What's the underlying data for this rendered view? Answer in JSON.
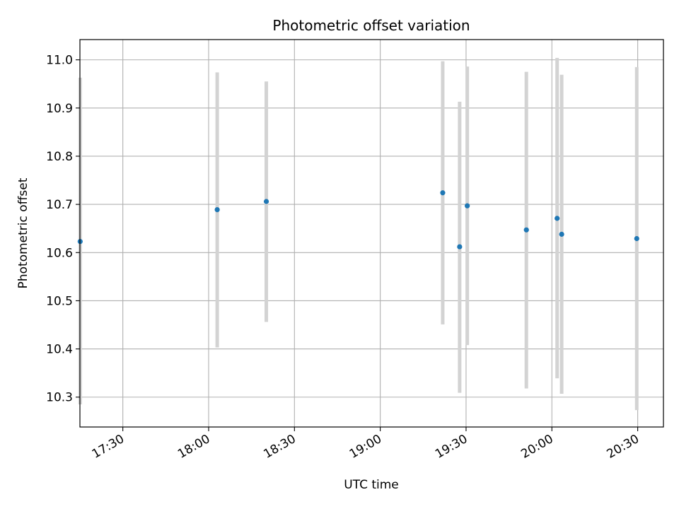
{
  "chart_data": {
    "type": "scatter",
    "title": "Photometric offset variation",
    "xlabel": "UTC time",
    "ylabel": "Photometric offset",
    "x_axis": {
      "kind": "time",
      "range": [
        "17:15",
        "20:39"
      ],
      "ticks": [
        "17:30",
        "18:00",
        "18:30",
        "19:00",
        "19:30",
        "20:00",
        "20:30"
      ]
    },
    "y_axis": {
      "range": [
        10.238,
        11.042
      ],
      "ticks": [
        "10.3",
        "10.4",
        "10.5",
        "10.6",
        "10.7",
        "10.8",
        "10.9",
        "11.0"
      ]
    },
    "grid": true,
    "series": [
      {
        "points": [
          {
            "x": "17:15:05",
            "y": 10.623,
            "ylow": 10.285,
            "yhigh": 10.963
          },
          {
            "x": "18:03:00",
            "y": 10.689,
            "ylow": 10.403,
            "yhigh": 10.974
          },
          {
            "x": "18:20:10",
            "y": 10.706,
            "ylow": 10.456,
            "yhigh": 10.955
          },
          {
            "x": "19:21:50",
            "y": 10.724,
            "ylow": 10.451,
            "yhigh": 10.997
          },
          {
            "x": "19:27:45",
            "y": 10.612,
            "ylow": 10.309,
            "yhigh": 10.913
          },
          {
            "x": "19:30:25",
            "y": 10.697,
            "ylow": 10.408,
            "yhigh": 10.986
          },
          {
            "x": "19:51:05",
            "y": 10.647,
            "ylow": 10.318,
            "yhigh": 10.975
          },
          {
            "x": "20:01:50",
            "y": 10.671,
            "ylow": 10.339,
            "yhigh": 11.004
          },
          {
            "x": "20:03:25",
            "y": 10.638,
            "ylow": 10.307,
            "yhigh": 10.969
          },
          {
            "x": "20:29:40",
            "y": 10.629,
            "ylow": 10.273,
            "yhigh": 10.985
          }
        ]
      }
    ]
  },
  "colors": {
    "point": "#1f77b4",
    "error_bar": "#d3d3d3",
    "grid": "#b0b0b0",
    "axes": "#000000",
    "background": "#ffffff"
  }
}
